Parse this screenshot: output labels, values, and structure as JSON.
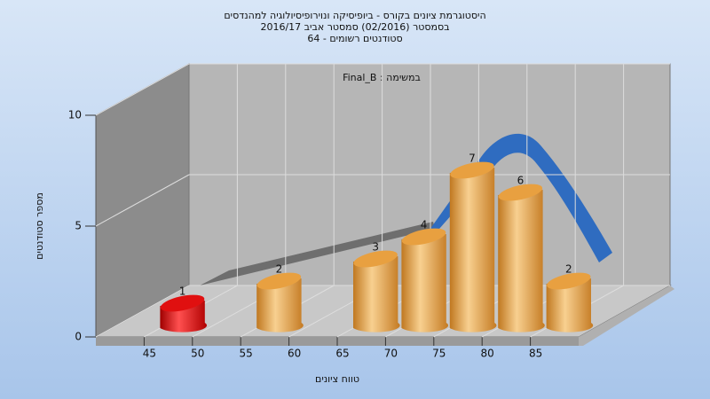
{
  "chart_data": {
    "type": "histogram",
    "title": [
      "היסטוגרמת ציונים בקורס - ביופיסיקה ונוירופיסיולוגיה למהנדסים",
      "בסמסטר  (02/2016)  סמסטר אביב 2016/17",
      "סטודנטים רשומים - 64"
    ],
    "annotation": "Final_B : במשימה",
    "x_label": "טווח ציונים",
    "y_label": "מספר סטודנטים",
    "bins": [
      45,
      50,
      55,
      60,
      65,
      70,
      75,
      80,
      85,
      90
    ],
    "values": [
      1,
      0,
      2,
      0,
      3,
      4,
      7,
      6,
      2
    ],
    "colors": [
      "#e01010",
      "#e8a040",
      "#e8a040",
      "#e8a040",
      "#e8a040",
      "#e8a040",
      "#e8a040",
      "#e8a040",
      "#e8a040"
    ],
    "xlim": [
      40,
      90
    ],
    "xticks": [
      45,
      50,
      55,
      60,
      65,
      70,
      75,
      80,
      85
    ],
    "ylim": [
      0,
      10
    ],
    "yticks": [
      0,
      5,
      10
    ],
    "grid": true
  }
}
